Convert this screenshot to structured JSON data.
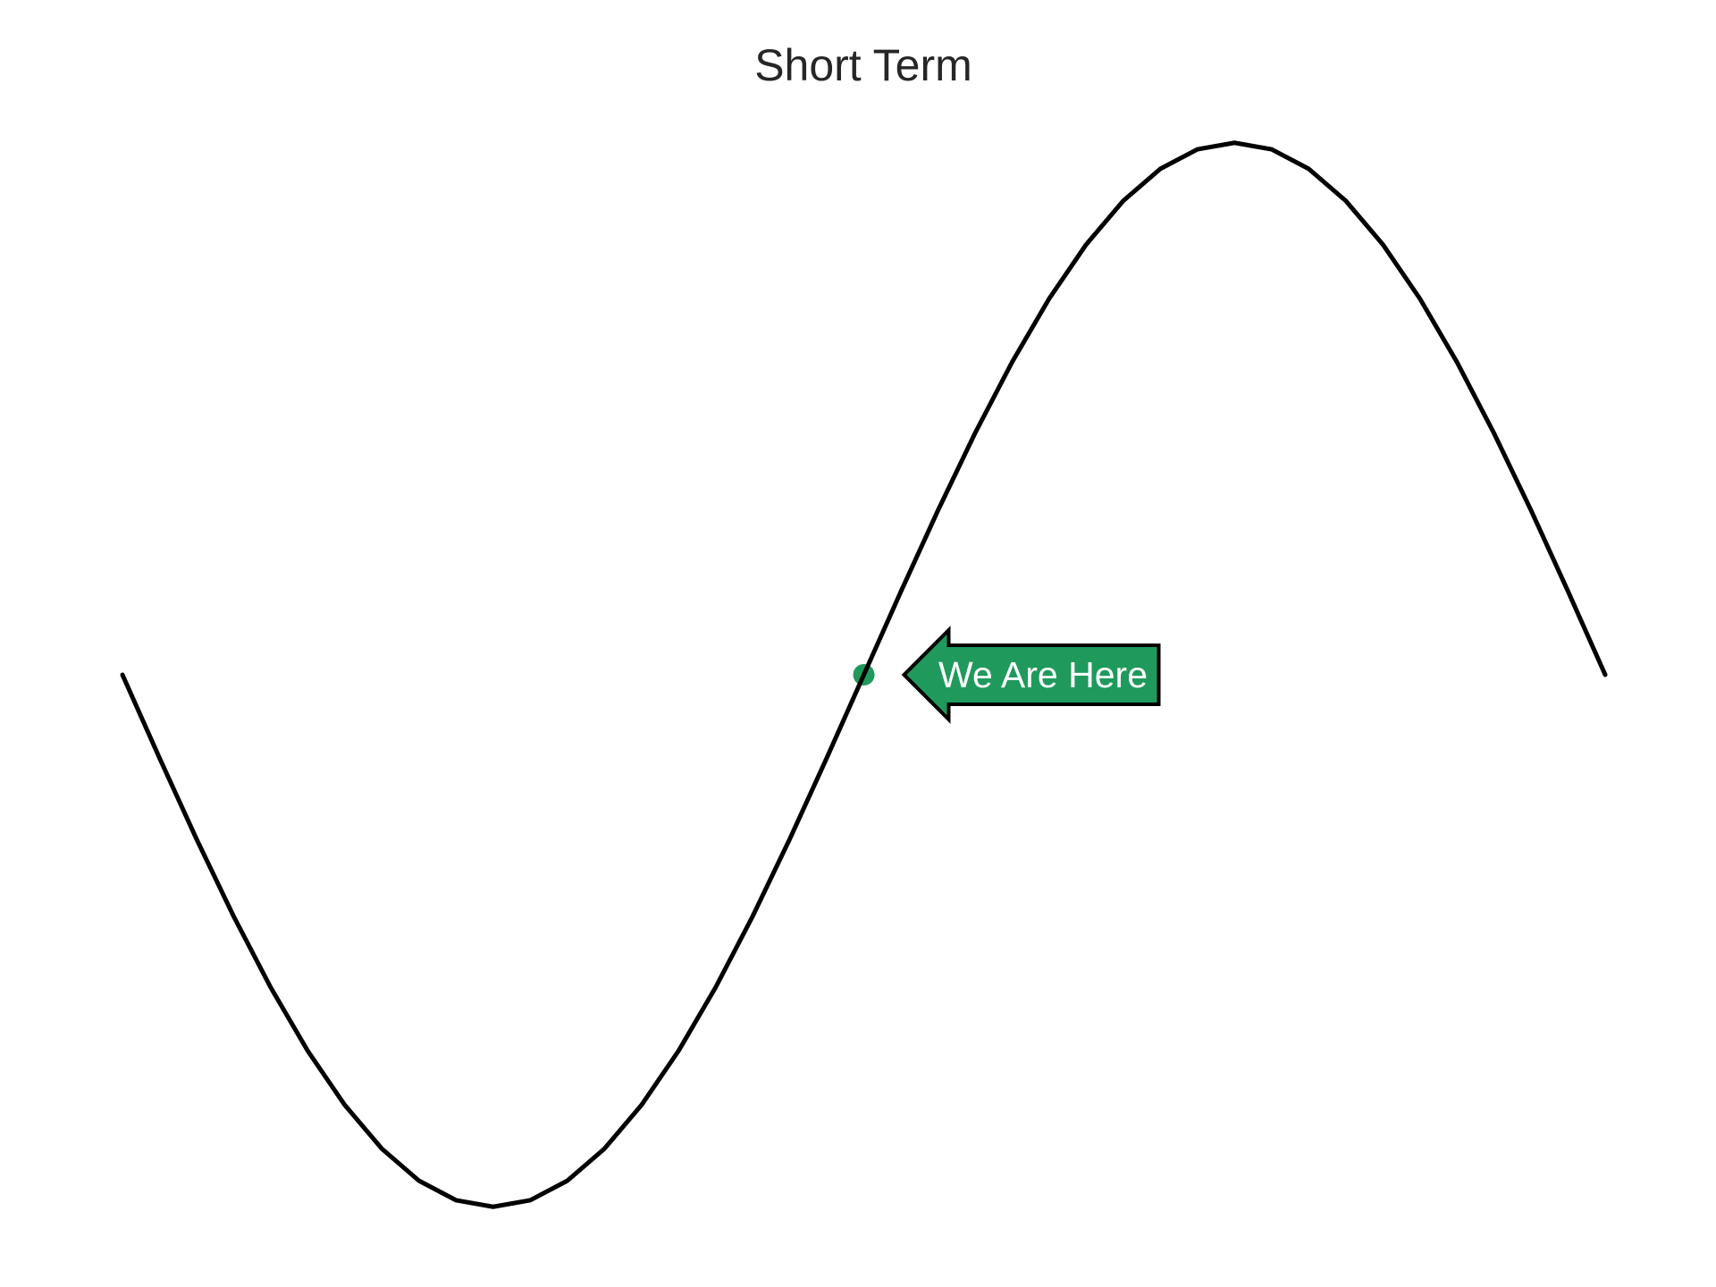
{
  "chart_data": {
    "type": "line",
    "title": "Short Term",
    "xlabel": "",
    "ylabel": "",
    "axes_visible": false,
    "grid": false,
    "xlim": [
      0,
      6.283
    ],
    "ylim": [
      -1.05,
      1.05
    ],
    "series": [
      {
        "type": "line",
        "x": [
          0,
          0.1571,
          0.3142,
          0.4712,
          0.6283,
          0.7854,
          0.9425,
          1.0996,
          1.2566,
          1.4137,
          1.5708,
          1.7279,
          1.885,
          2.042,
          2.1991,
          2.3562,
          2.5133,
          2.6704,
          2.8274,
          2.9845,
          3.1416,
          3.2987,
          3.4558,
          3.6128,
          3.7699,
          3.927,
          4.0841,
          4.2412,
          4.3982,
          4.5553,
          4.7124,
          4.8695,
          5.0265,
          5.1836,
          5.3407,
          5.4978,
          5.6549,
          5.8119,
          5.969,
          6.1261,
          6.2832
        ],
        "y": [
          0,
          -0.1564,
          -0.309,
          -0.454,
          -0.5878,
          -0.7071,
          -0.809,
          -0.891,
          -0.9511,
          -0.9877,
          -1.0,
          -0.9877,
          -0.9511,
          -0.891,
          -0.809,
          -0.7071,
          -0.5878,
          -0.454,
          -0.309,
          -0.1564,
          0,
          0.1564,
          0.309,
          0.454,
          0.5878,
          0.7071,
          0.809,
          0.891,
          0.9511,
          0.9877,
          1.0,
          0.9877,
          0.9511,
          0.891,
          0.809,
          0.7071,
          0.5878,
          0.454,
          0.309,
          0.1564,
          0
        ],
        "color": "#000000"
      }
    ],
    "marker": {
      "x": 3.1416,
      "y": 0,
      "color": "#1f9a5c"
    },
    "annotation": {
      "text": "We Are Here",
      "x": 3.1416,
      "y": 0,
      "box_color": "#1f9a5c",
      "edge_color": "#000000",
      "text_color": "#ffffff"
    }
  }
}
